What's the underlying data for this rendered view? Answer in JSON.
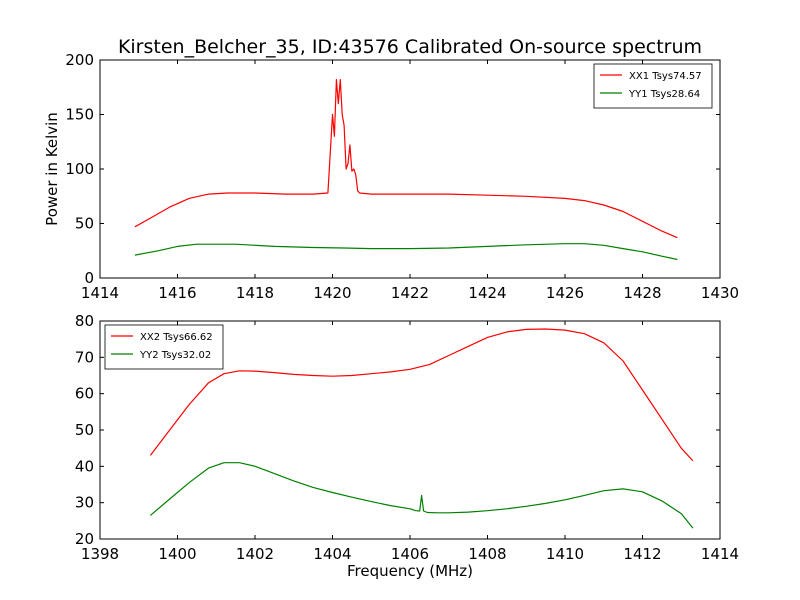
{
  "figure": {
    "title": "Kirsten_Belcher_35, ID:43576 Calibrated On-source spectrum"
  },
  "chart_data": [
    {
      "type": "line",
      "title": "Kirsten_Belcher_35, ID:43576 Calibrated On-source spectrum",
      "xlabel": "",
      "ylabel": "Power in Kelvin",
      "xlim": [
        1414,
        1430
      ],
      "ylim": [
        0,
        200
      ],
      "xticks": [
        1414,
        1416,
        1418,
        1420,
        1422,
        1424,
        1426,
        1428,
        1430
      ],
      "yticks": [
        0,
        50,
        100,
        150,
        200
      ],
      "grid": false,
      "legend_position": "top-right",
      "series": [
        {
          "name": "XX1 Tsys74.57",
          "color": "#ff0000",
          "x": [
            1414.9,
            1415.3,
            1415.8,
            1416.3,
            1416.8,
            1417.3,
            1418.0,
            1418.8,
            1419.5,
            1419.88,
            1419.95,
            1420.0,
            1420.05,
            1420.1,
            1420.15,
            1420.2,
            1420.25,
            1420.3,
            1420.35,
            1420.4,
            1420.45,
            1420.5,
            1420.55,
            1420.6,
            1420.65,
            1420.7,
            1421.0,
            1422.0,
            1423.0,
            1424.0,
            1425.0,
            1426.0,
            1426.5,
            1427.0,
            1427.5,
            1428.0,
            1428.5,
            1428.9
          ],
          "y": [
            47,
            55,
            65,
            73,
            77,
            78,
            78,
            77,
            77,
            78,
            120,
            150,
            130,
            182,
            160,
            182,
            150,
            140,
            100,
            105,
            122,
            98,
            100,
            95,
            80,
            78,
            77,
            77,
            77,
            76,
            75,
            73,
            71,
            67,
            61,
            52,
            43,
            37
          ]
        },
        {
          "name": "YY1 Tsys28.64",
          "color": "#008000",
          "x": [
            1414.9,
            1415.5,
            1416.0,
            1416.5,
            1417.0,
            1417.5,
            1418.5,
            1419.5,
            1420.3,
            1421.0,
            1422.0,
            1423.0,
            1424.0,
            1425.0,
            1426.0,
            1426.5,
            1427.0,
            1427.5,
            1428.0,
            1428.5,
            1428.9
          ],
          "y": [
            21,
            25,
            29,
            31,
            31,
            31,
            29,
            28,
            27.5,
            27,
            27,
            27.5,
            29,
            30.5,
            31.5,
            31.5,
            30,
            27,
            24,
            20,
            17
          ]
        }
      ]
    },
    {
      "type": "line",
      "title": "",
      "xlabel": "Frequency (MHz)",
      "ylabel": "",
      "xlim": [
        1398,
        1414
      ],
      "ylim": [
        20,
        80
      ],
      "xticks": [
        1398,
        1400,
        1402,
        1404,
        1406,
        1408,
        1410,
        1412,
        1414
      ],
      "yticks": [
        20,
        30,
        40,
        50,
        60,
        70,
        80
      ],
      "grid": false,
      "legend_position": "top-left",
      "series": [
        {
          "name": "XX2 Tsys66.62",
          "color": "#ff0000",
          "x": [
            1399.3,
            1399.8,
            1400.3,
            1400.8,
            1401.2,
            1401.6,
            1402.0,
            1402.5,
            1403.0,
            1403.5,
            1404.0,
            1404.5,
            1405.0,
            1405.5,
            1406.0,
            1406.5,
            1407.0,
            1407.5,
            1408.0,
            1408.5,
            1409.0,
            1409.5,
            1410.0,
            1410.5,
            1411.0,
            1411.5,
            1412.0,
            1412.5,
            1413.0,
            1413.3
          ],
          "y": [
            43,
            50,
            57,
            63,
            65.5,
            66.3,
            66.2,
            65.8,
            65.3,
            65,
            64.8,
            65,
            65.5,
            66,
            66.7,
            68,
            70.5,
            73,
            75.5,
            77,
            77.7,
            77.8,
            77.5,
            76.5,
            74,
            69,
            61,
            53,
            45,
            41.5
          ]
        },
        {
          "name": "YY2 Tsys32.02",
          "color": "#008000",
          "x": [
            1399.3,
            1399.8,
            1400.3,
            1400.8,
            1401.2,
            1401.6,
            1402.0,
            1402.5,
            1403.0,
            1403.5,
            1404.0,
            1404.5,
            1405.0,
            1405.5,
            1406.0,
            1406.15,
            1406.25,
            1406.3,
            1406.35,
            1406.45,
            1406.7,
            1407.0,
            1407.5,
            1408.0,
            1408.5,
            1409.0,
            1409.5,
            1410.0,
            1410.5,
            1411.0,
            1411.5,
            1412.0,
            1412.5,
            1413.0,
            1413.3
          ],
          "y": [
            26.5,
            31,
            35.5,
            39.5,
            41,
            41,
            40,
            38,
            36,
            34.2,
            32.8,
            31.5,
            30.3,
            29.2,
            28.3,
            27.8,
            27.7,
            32,
            27.7,
            27.3,
            27.2,
            27.2,
            27.4,
            27.8,
            28.3,
            29,
            29.8,
            30.8,
            32,
            33.3,
            33.8,
            33,
            30.5,
            27,
            23
          ]
        }
      ]
    }
  ]
}
